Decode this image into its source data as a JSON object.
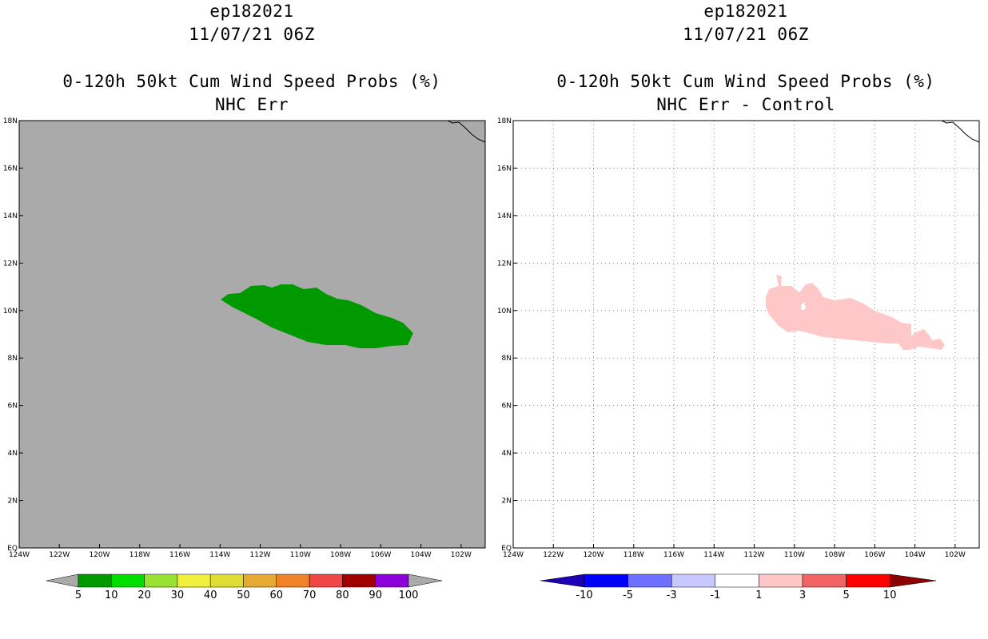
{
  "left": {
    "title": [
      "ep182021",
      "11/07/21 06Z"
    ],
    "subtitle": [
      "0-120h 50kt Cum Wind Speed Probs (%)",
      "NHC Err"
    ]
  },
  "right": {
    "title": [
      "ep182021",
      "11/07/21 06Z"
    ],
    "subtitle": [
      "0-120h 50kt Cum Wind Speed Probs (%)",
      "NHC Err - Control"
    ]
  },
  "map": {
    "lon_range": [
      -124,
      -100.8
    ],
    "lat_range": [
      0,
      18
    ],
    "x_ticks": [
      "124W",
      "122W",
      "120W",
      "118W",
      "116W",
      "114W",
      "112W",
      "110W",
      "108W",
      "106W",
      "104W",
      "102W"
    ],
    "y_ticks": [
      "EQ",
      "2N",
      "4N",
      "6N",
      "8N",
      "10N",
      "12N",
      "14N",
      "16N",
      "18N"
    ],
    "land_color": "#aaaaaa"
  },
  "chart_data": [
    {
      "type": "heatmap",
      "panel": "left",
      "colorbar": {
        "labels": [
          "5",
          "10",
          "20",
          "30",
          "40",
          "50",
          "60",
          "70",
          "80",
          "90",
          "100"
        ],
        "colors": [
          "#009900",
          "#00dd00",
          "#99e133",
          "#f0f03c",
          "#dddd33",
          "#e6aa33",
          "#f08228",
          "#f04646",
          "#a00000",
          "#8c00dc",
          "#aaaaaa"
        ]
      },
      "regions": [
        {
          "category": "5-10",
          "color": "#009900"
        }
      ]
    },
    {
      "type": "heatmap",
      "panel": "right",
      "colorbar": {
        "labels": [
          "-10",
          "-5",
          "-3",
          "-1",
          "1",
          "3",
          "5",
          "10"
        ],
        "colors": [
          "#1e00b4",
          "#0000ff",
          "#6e6eff",
          "#c8c8ff",
          "#ffffff",
          "#ffc8c8",
          "#f06464",
          "#ff0000",
          "#8c0000"
        ]
      },
      "regions": [
        {
          "category": "1-3",
          "color": "#ffc8c8"
        }
      ]
    }
  ]
}
